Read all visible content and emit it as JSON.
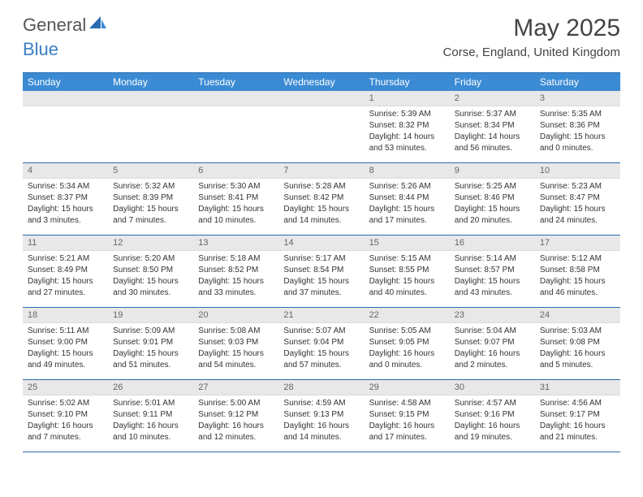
{
  "brand": {
    "text1": "General",
    "text2": "Blue"
  },
  "title": "May 2025",
  "location": "Corse, England, United Kingdom",
  "colors": {
    "header_bg": "#3b8bd4",
    "border": "#2a6bb0",
    "daynum_bg": "#e8e8e8",
    "brand_blue": "#3b7fc4"
  },
  "dow": [
    "Sunday",
    "Monday",
    "Tuesday",
    "Wednesday",
    "Thursday",
    "Friday",
    "Saturday"
  ],
  "weeks": [
    [
      {
        "n": "",
        "sr": "",
        "ss": "",
        "dl1": "",
        "dl2": ""
      },
      {
        "n": "",
        "sr": "",
        "ss": "",
        "dl1": "",
        "dl2": ""
      },
      {
        "n": "",
        "sr": "",
        "ss": "",
        "dl1": "",
        "dl2": ""
      },
      {
        "n": "",
        "sr": "",
        "ss": "",
        "dl1": "",
        "dl2": ""
      },
      {
        "n": "1",
        "sr": "Sunrise: 5:39 AM",
        "ss": "Sunset: 8:32 PM",
        "dl1": "Daylight: 14 hours",
        "dl2": "and 53 minutes."
      },
      {
        "n": "2",
        "sr": "Sunrise: 5:37 AM",
        "ss": "Sunset: 8:34 PM",
        "dl1": "Daylight: 14 hours",
        "dl2": "and 56 minutes."
      },
      {
        "n": "3",
        "sr": "Sunrise: 5:35 AM",
        "ss": "Sunset: 8:36 PM",
        "dl1": "Daylight: 15 hours",
        "dl2": "and 0 minutes."
      }
    ],
    [
      {
        "n": "4",
        "sr": "Sunrise: 5:34 AM",
        "ss": "Sunset: 8:37 PM",
        "dl1": "Daylight: 15 hours",
        "dl2": "and 3 minutes."
      },
      {
        "n": "5",
        "sr": "Sunrise: 5:32 AM",
        "ss": "Sunset: 8:39 PM",
        "dl1": "Daylight: 15 hours",
        "dl2": "and 7 minutes."
      },
      {
        "n": "6",
        "sr": "Sunrise: 5:30 AM",
        "ss": "Sunset: 8:41 PM",
        "dl1": "Daylight: 15 hours",
        "dl2": "and 10 minutes."
      },
      {
        "n": "7",
        "sr": "Sunrise: 5:28 AM",
        "ss": "Sunset: 8:42 PM",
        "dl1": "Daylight: 15 hours",
        "dl2": "and 14 minutes."
      },
      {
        "n": "8",
        "sr": "Sunrise: 5:26 AM",
        "ss": "Sunset: 8:44 PM",
        "dl1": "Daylight: 15 hours",
        "dl2": "and 17 minutes."
      },
      {
        "n": "9",
        "sr": "Sunrise: 5:25 AM",
        "ss": "Sunset: 8:46 PM",
        "dl1": "Daylight: 15 hours",
        "dl2": "and 20 minutes."
      },
      {
        "n": "10",
        "sr": "Sunrise: 5:23 AM",
        "ss": "Sunset: 8:47 PM",
        "dl1": "Daylight: 15 hours",
        "dl2": "and 24 minutes."
      }
    ],
    [
      {
        "n": "11",
        "sr": "Sunrise: 5:21 AM",
        "ss": "Sunset: 8:49 PM",
        "dl1": "Daylight: 15 hours",
        "dl2": "and 27 minutes."
      },
      {
        "n": "12",
        "sr": "Sunrise: 5:20 AM",
        "ss": "Sunset: 8:50 PM",
        "dl1": "Daylight: 15 hours",
        "dl2": "and 30 minutes."
      },
      {
        "n": "13",
        "sr": "Sunrise: 5:18 AM",
        "ss": "Sunset: 8:52 PM",
        "dl1": "Daylight: 15 hours",
        "dl2": "and 33 minutes."
      },
      {
        "n": "14",
        "sr": "Sunrise: 5:17 AM",
        "ss": "Sunset: 8:54 PM",
        "dl1": "Daylight: 15 hours",
        "dl2": "and 37 minutes."
      },
      {
        "n": "15",
        "sr": "Sunrise: 5:15 AM",
        "ss": "Sunset: 8:55 PM",
        "dl1": "Daylight: 15 hours",
        "dl2": "and 40 minutes."
      },
      {
        "n": "16",
        "sr": "Sunrise: 5:14 AM",
        "ss": "Sunset: 8:57 PM",
        "dl1": "Daylight: 15 hours",
        "dl2": "and 43 minutes."
      },
      {
        "n": "17",
        "sr": "Sunrise: 5:12 AM",
        "ss": "Sunset: 8:58 PM",
        "dl1": "Daylight: 15 hours",
        "dl2": "and 46 minutes."
      }
    ],
    [
      {
        "n": "18",
        "sr": "Sunrise: 5:11 AM",
        "ss": "Sunset: 9:00 PM",
        "dl1": "Daylight: 15 hours",
        "dl2": "and 49 minutes."
      },
      {
        "n": "19",
        "sr": "Sunrise: 5:09 AM",
        "ss": "Sunset: 9:01 PM",
        "dl1": "Daylight: 15 hours",
        "dl2": "and 51 minutes."
      },
      {
        "n": "20",
        "sr": "Sunrise: 5:08 AM",
        "ss": "Sunset: 9:03 PM",
        "dl1": "Daylight: 15 hours",
        "dl2": "and 54 minutes."
      },
      {
        "n": "21",
        "sr": "Sunrise: 5:07 AM",
        "ss": "Sunset: 9:04 PM",
        "dl1": "Daylight: 15 hours",
        "dl2": "and 57 minutes."
      },
      {
        "n": "22",
        "sr": "Sunrise: 5:05 AM",
        "ss": "Sunset: 9:05 PM",
        "dl1": "Daylight: 16 hours",
        "dl2": "and 0 minutes."
      },
      {
        "n": "23",
        "sr": "Sunrise: 5:04 AM",
        "ss": "Sunset: 9:07 PM",
        "dl1": "Daylight: 16 hours",
        "dl2": "and 2 minutes."
      },
      {
        "n": "24",
        "sr": "Sunrise: 5:03 AM",
        "ss": "Sunset: 9:08 PM",
        "dl1": "Daylight: 16 hours",
        "dl2": "and 5 minutes."
      }
    ],
    [
      {
        "n": "25",
        "sr": "Sunrise: 5:02 AM",
        "ss": "Sunset: 9:10 PM",
        "dl1": "Daylight: 16 hours",
        "dl2": "and 7 minutes."
      },
      {
        "n": "26",
        "sr": "Sunrise: 5:01 AM",
        "ss": "Sunset: 9:11 PM",
        "dl1": "Daylight: 16 hours",
        "dl2": "and 10 minutes."
      },
      {
        "n": "27",
        "sr": "Sunrise: 5:00 AM",
        "ss": "Sunset: 9:12 PM",
        "dl1": "Daylight: 16 hours",
        "dl2": "and 12 minutes."
      },
      {
        "n": "28",
        "sr": "Sunrise: 4:59 AM",
        "ss": "Sunset: 9:13 PM",
        "dl1": "Daylight: 16 hours",
        "dl2": "and 14 minutes."
      },
      {
        "n": "29",
        "sr": "Sunrise: 4:58 AM",
        "ss": "Sunset: 9:15 PM",
        "dl1": "Daylight: 16 hours",
        "dl2": "and 17 minutes."
      },
      {
        "n": "30",
        "sr": "Sunrise: 4:57 AM",
        "ss": "Sunset: 9:16 PM",
        "dl1": "Daylight: 16 hours",
        "dl2": "and 19 minutes."
      },
      {
        "n": "31",
        "sr": "Sunrise: 4:56 AM",
        "ss": "Sunset: 9:17 PM",
        "dl1": "Daylight: 16 hours",
        "dl2": "and 21 minutes."
      }
    ]
  ]
}
